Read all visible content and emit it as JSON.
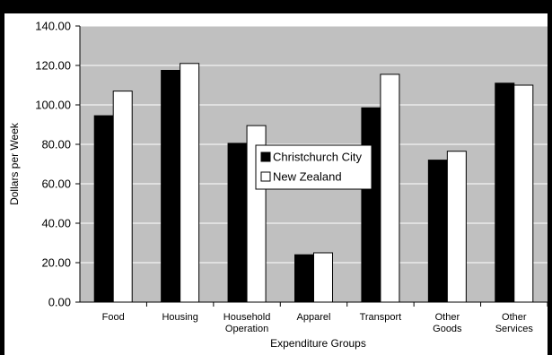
{
  "chart_data": {
    "type": "bar",
    "title": "",
    "xlabel": "Expenditure Groups",
    "ylabel": "Dollars per Week",
    "ylim": [
      0,
      140
    ],
    "yticks": [
      "0.00",
      "20.00",
      "40.00",
      "60.00",
      "80.00",
      "100.00",
      "120.00",
      "140.00"
    ],
    "categories": [
      [
        "Food"
      ],
      [
        "Housing"
      ],
      [
        "Household",
        "Operation"
      ],
      [
        "Apparel"
      ],
      [
        "Transport"
      ],
      [
        "Other",
        "Goods"
      ],
      [
        "Other",
        "Services"
      ]
    ],
    "series": [
      {
        "name": "Christchurch City",
        "values": [
          94.5,
          117.5,
          80.5,
          24.0,
          98.5,
          72.0,
          111.0
        ],
        "color": "#000000"
      },
      {
        "name": "New Zealand",
        "values": [
          107.0,
          121.0,
          89.5,
          25.0,
          115.5,
          76.5,
          110.0
        ],
        "color": "#ffffff"
      }
    ],
    "grid": true,
    "plot_background": "#c0c0c0",
    "legend_position": "center"
  }
}
